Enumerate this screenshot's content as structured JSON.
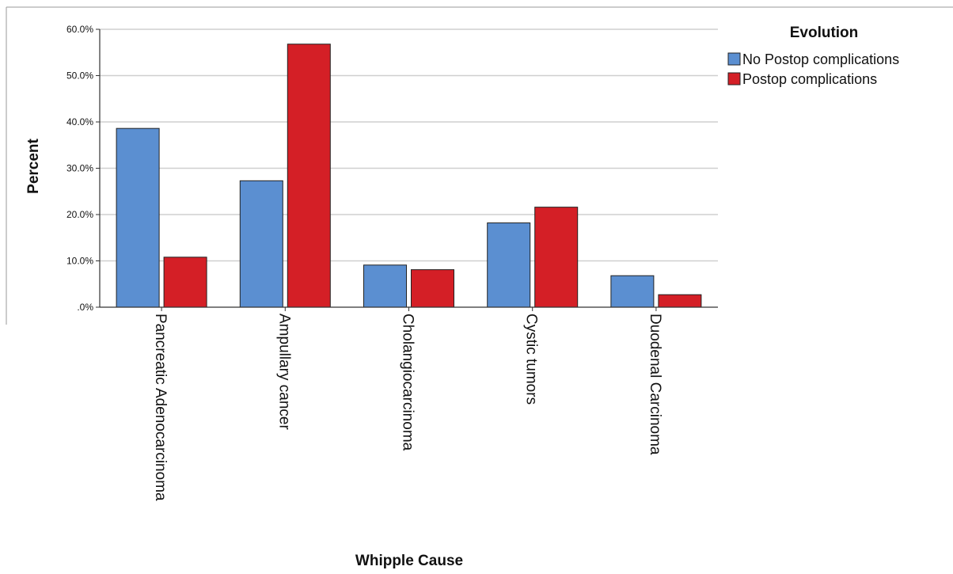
{
  "chart_data": {
    "type": "bar",
    "xlabel": "Whipple Cause",
    "ylabel": "Percent",
    "ylim": [
      0,
      60
    ],
    "yticks": [
      0,
      10,
      20,
      30,
      40,
      50,
      60
    ],
    "ytick_labels": [
      ".0%",
      "10.0%",
      "20.0%",
      "30.0%",
      "40.0%",
      "50.0%",
      "60.0%"
    ],
    "grid": true,
    "categories": [
      "Pancreatic Adenocarcinoma",
      "Ampullary cancer",
      "Cholangiocarcinoma",
      "Cystic tumors",
      "Duodenal Carcinoma"
    ],
    "legend": {
      "title": "Evolution",
      "placement": "top-right"
    },
    "series": [
      {
        "name": "No Postop complications",
        "color": "#5b8fd1",
        "values": [
          38.6,
          27.3,
          9.1,
          18.2,
          6.8
        ]
      },
      {
        "name": "Postop complications",
        "color": "#d41f26",
        "values": [
          10.8,
          56.8,
          8.1,
          21.6,
          2.7
        ]
      }
    ]
  }
}
